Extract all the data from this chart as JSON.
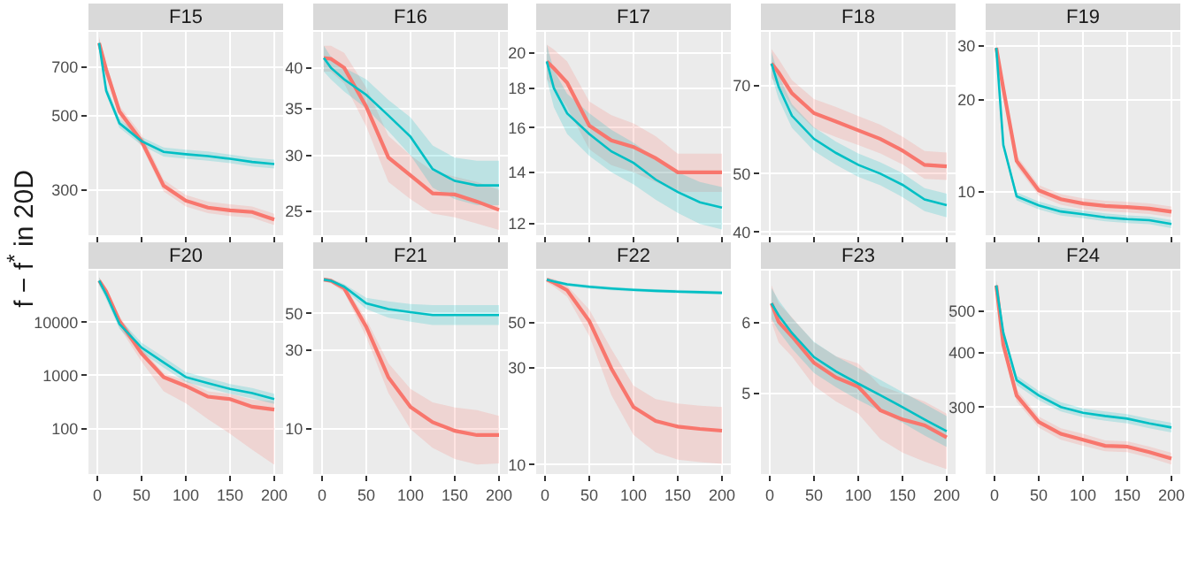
{
  "chart_data": [
    {
      "type": "line",
      "title": "F15",
      "ylabel": "f − f$^{*}$ in 20D",
      "x": [
        2,
        10,
        25,
        50,
        75,
        100,
        125,
        150,
        175,
        200
      ],
      "xlim": [
        -10,
        210
      ],
      "xticks": [
        0,
        50,
        100,
        150,
        200
      ],
      "ylim": [
        220,
        890
      ],
      "yticks": [
        300,
        500,
        700
      ],
      "log": "y",
      "grid": true,
      "tick_labels": "y",
      "series": [
        {
          "color": "#f8766d",
          "values": [
            824,
            686,
            515,
            420,
            309,
            279,
            266,
            261,
            258,
            245
          ],
          "lower": [
            790,
            660,
            495,
            405,
            297,
            268,
            256,
            251,
            248,
            236
          ],
          "upper": [
            860,
            715,
            535,
            440,
            322,
            290,
            277,
            272,
            268,
            255
          ]
        },
        {
          "color": "#00bfc4",
          "values": [
            824,
            594,
            475,
            420,
            390,
            384,
            379,
            372,
            364,
            359
          ],
          "lower": [
            800,
            580,
            460,
            408,
            378,
            372,
            367,
            361,
            353,
            348
          ],
          "upper": [
            850,
            615,
            490,
            432,
            402,
            396,
            391,
            383,
            375,
            370
          ]
        }
      ]
    },
    {
      "type": "line",
      "title": "F16",
      "x": [
        2,
        10,
        25,
        50,
        75,
        100,
        125,
        150,
        175,
        200
      ],
      "xlim": [
        -10,
        210
      ],
      "xticks": [
        0,
        50,
        100,
        150,
        200
      ],
      "ylim": [
        23.1,
        45
      ],
      "yticks": [
        25,
        30,
        35,
        40
      ],
      "log": "y",
      "grid": true,
      "tick_labels": "y",
      "series": [
        {
          "color": "#f8766d",
          "values": [
            41.3,
            41.2,
            40.0,
            35.2,
            29.8,
            28.1,
            26.5,
            26.4,
            25.8,
            25.1
          ],
          "lower": [
            39.5,
            39.5,
            38,
            33,
            27.5,
            26,
            24.8,
            24.5,
            24,
            23.5
          ],
          "upper": [
            43,
            43,
            42,
            37.5,
            32,
            30,
            28.5,
            28,
            27.5,
            26.8
          ]
        },
        {
          "color": "#00bfc4",
          "values": [
            41.3,
            40.0,
            38.5,
            36.6,
            34.2,
            31.9,
            28.7,
            27.6,
            27.2,
            27.2
          ],
          "lower": [
            39.5,
            38.5,
            37,
            35,
            32.5,
            30,
            27,
            26,
            25.5,
            25.5
          ],
          "upper": [
            43,
            41.5,
            40,
            38.5,
            36,
            34,
            31,
            29.8,
            29.5,
            29.5
          ]
        }
      ]
    },
    {
      "type": "line",
      "title": "F17",
      "x": [
        2,
        10,
        25,
        50,
        75,
        100,
        125,
        150,
        175,
        200
      ],
      "xlim": [
        -10,
        210
      ],
      "xticks": [
        0,
        50,
        100,
        150,
        200
      ],
      "ylim": [
        11.6,
        21.3
      ],
      "yticks": [
        12,
        14,
        16,
        18,
        20
      ],
      "log": "y",
      "grid": true,
      "tick_labels": "y",
      "series": [
        {
          "color": "#f8766d",
          "values": [
            19.5,
            19.1,
            18.3,
            16.1,
            15.4,
            15.1,
            14.6,
            14.0,
            14.0,
            14.0
          ],
          "lower": [
            18.5,
            18.0,
            17.0,
            15.0,
            14.3,
            14.0,
            13.6,
            13.2,
            13.2,
            13.2
          ],
          "upper": [
            20.5,
            20.2,
            19.5,
            17.3,
            16.6,
            16.2,
            15.6,
            14.8,
            14.8,
            14.8
          ]
        },
        {
          "color": "#00bfc4",
          "values": [
            19.5,
            18.0,
            16.7,
            15.7,
            14.9,
            14.4,
            13.7,
            13.2,
            12.8,
            12.6
          ],
          "lower": [
            18.5,
            17.0,
            15.7,
            14.7,
            14.0,
            13.5,
            12.9,
            12.4,
            12.0,
            11.8
          ],
          "upper": [
            20.5,
            19.0,
            17.7,
            16.7,
            15.9,
            15.3,
            14.6,
            14.0,
            13.6,
            13.4
          ]
        }
      ]
    },
    {
      "type": "line",
      "title": "F18",
      "x": [
        2,
        10,
        25,
        50,
        75,
        100,
        125,
        150,
        175,
        200
      ],
      "xlim": [
        -10,
        210
      ],
      "xticks": [
        0,
        50,
        100,
        150,
        200
      ],
      "ylim": [
        39.5,
        86
      ],
      "yticks": [
        40,
        50,
        70
      ],
      "log": "y",
      "grid": true,
      "tick_labels": "y",
      "series": [
        {
          "color": "#f8766d",
          "values": [
            76.2,
            73.6,
            68.0,
            63.0,
            61.0,
            59.0,
            57.1,
            54.6,
            51.7,
            51.4
          ],
          "lower": [
            72,
            70,
            64.5,
            59.5,
            57.5,
            55.8,
            54,
            51.8,
            49,
            48.8
          ],
          "upper": [
            80.5,
            77.5,
            71.5,
            66.5,
            64.5,
            62.3,
            60.3,
            57.6,
            54.5,
            54.2
          ]
        },
        {
          "color": "#00bfc4",
          "values": [
            76.2,
            69.7,
            62.4,
            57.1,
            54.1,
            51.7,
            50.0,
            47.9,
            45.3,
            44.3
          ],
          "lower": [
            72.8,
            66.5,
            59.6,
            54.5,
            51.7,
            49.4,
            47.8,
            45.7,
            43.3,
            42.3
          ],
          "upper": [
            79.6,
            72.9,
            65.2,
            59.7,
            56.5,
            54,
            52.2,
            50.1,
            47.3,
            46.3
          ]
        }
      ]
    },
    {
      "type": "line",
      "title": "F19",
      "x": [
        2,
        10,
        25,
        50,
        75,
        100,
        125,
        150,
        175,
        200
      ],
      "xlim": [
        -10,
        210
      ],
      "xticks": [
        0,
        50,
        100,
        150,
        200
      ],
      "ylim": [
        7.2,
        33.3
      ],
      "yticks": [
        10,
        20,
        30
      ],
      "log": "y",
      "grid": true,
      "tick_labels": "y",
      "series": [
        {
          "color": "#f8766d",
          "values": [
            29.5,
            21.7,
            12.6,
            10.1,
            9.44,
            9.14,
            8.98,
            8.9,
            8.8,
            8.6
          ],
          "lower": [
            28.3,
            20.8,
            12.1,
            9.7,
            9.06,
            8.77,
            8.62,
            8.54,
            8.45,
            8.26
          ],
          "upper": [
            30.7,
            22.6,
            13.1,
            10.5,
            9.82,
            9.51,
            9.34,
            9.26,
            9.15,
            8.94
          ]
        },
        {
          "color": "#00bfc4",
          "values": [
            29.5,
            14.2,
            9.65,
            9.02,
            8.61,
            8.43,
            8.24,
            8.13,
            8.06,
            7.84
          ],
          "lower": [
            28.6,
            13.8,
            9.36,
            8.75,
            8.35,
            8.18,
            7.99,
            7.89,
            7.82,
            7.6
          ],
          "upper": [
            30.4,
            14.6,
            9.94,
            9.29,
            8.87,
            8.68,
            8.49,
            8.37,
            8.3,
            8.08
          ]
        }
      ]
    },
    {
      "type": "line",
      "title": "F20",
      "x": [
        2,
        10,
        25,
        50,
        75,
        100,
        125,
        150,
        175,
        200
      ],
      "xlim": [
        -10,
        210
      ],
      "xticks": [
        0,
        50,
        100,
        150,
        200
      ],
      "ylim": [
        14,
        93000
      ],
      "yticks": [
        100,
        1000,
        10000
      ],
      "log": "y",
      "grid": true,
      "series": [
        {
          "color": "#f8766d",
          "values": [
            60000,
            37800,
            10500,
            2580,
            927,
            631,
            398,
            359,
            258,
            227
          ],
          "lower": [
            50000,
            30000,
            8000,
            1800,
            500,
            300,
            150,
            80,
            40,
            21
          ],
          "upper": [
            70000,
            45000,
            13000,
            3200,
            1100,
            800,
            500,
            450,
            350,
            330
          ]
        },
        {
          "color": "#00bfc4",
          "values": [
            60000,
            33300,
            9260,
            3330,
            1750,
            927,
            717,
            555,
            464,
            359
          ],
          "lower": [
            50000,
            27000,
            7500,
            2700,
            1400,
            750,
            580,
            450,
            370,
            290
          ],
          "upper": [
            70000,
            40000,
            11500,
            4100,
            2200,
            1150,
            890,
            690,
            580,
            450
          ]
        }
      ]
    },
    {
      "type": "line",
      "title": "F21",
      "x": [
        2,
        10,
        25,
        50,
        75,
        100,
        125,
        150,
        175,
        200
      ],
      "xlim": [
        -10,
        210
      ],
      "xticks": [
        0,
        50,
        100,
        150,
        200
      ],
      "ylim": [
        5.35,
        90.6
      ],
      "yticks": [
        10,
        30,
        50
      ],
      "log": "y",
      "grid": true,
      "series": [
        {
          "color": "#f8766d",
          "values": [
            80,
            78.7,
            70.8,
            41.4,
            20.5,
            13.6,
            11.0,
            9.76,
            9.2,
            9.2
          ],
          "lower": [
            78,
            76,
            67,
            36,
            16.5,
            10,
            7.7,
            6.6,
            6.1,
            6.2
          ],
          "upper": [
            82,
            81,
            74,
            46,
            25,
            17.5,
            14.5,
            13.5,
            13,
            12
          ]
        },
        {
          "color": "#00bfc4",
          "values": [
            80,
            78.7,
            72.4,
            57.5,
            53,
            50.8,
            48.8,
            48.8,
            48.8,
            48.8
          ],
          "lower": [
            78,
            76.5,
            70,
            53,
            47,
            44.5,
            42.5,
            42.5,
            42.5,
            42.5
          ],
          "upper": [
            82,
            81,
            75,
            62,
            59,
            57,
            56,
            56,
            56,
            56
          ]
        }
      ]
    },
    {
      "type": "line",
      "title": "F22",
      "x": [
        2,
        10,
        25,
        50,
        75,
        100,
        125,
        150,
        175,
        200
      ],
      "xlim": [
        -10,
        210
      ],
      "xticks": [
        0,
        50,
        100,
        150,
        200
      ],
      "ylim": [
        9,
        90
      ],
      "yticks": [
        10,
        30,
        50
      ],
      "log": "y",
      "grid": true,
      "series": [
        {
          "color": "#f8766d",
          "values": [
            81.3,
            78.5,
            72,
            50.8,
            29.7,
            19.2,
            16.4,
            15.4,
            15.0,
            14.7
          ],
          "lower": [
            79,
            75,
            67,
            43,
            22,
            14,
            11.5,
            10.6,
            10.3,
            10.1
          ],
          "upper": [
            83,
            82,
            76,
            58,
            37,
            24.5,
            21,
            20,
            19.5,
            19.2
          ]
        },
        {
          "color": "#00bfc4",
          "values": [
            81.3,
            79.6,
            77,
            75,
            73.5,
            72.4,
            71.6,
            71,
            70.5,
            70
          ],
          "lower": [
            79.7,
            78,
            75.5,
            73.5,
            72,
            71,
            70.2,
            69.6,
            69.1,
            68.6
          ],
          "upper": [
            82.9,
            81.2,
            78.5,
            76.5,
            75,
            73.8,
            73,
            72.4,
            71.9,
            71.4
          ]
        }
      ]
    },
    {
      "type": "line",
      "title": "F23",
      "x": [
        2,
        10,
        25,
        50,
        75,
        100,
        125,
        150,
        175,
        200
      ],
      "xlim": [
        -10,
        210
      ],
      "xticks": [
        0,
        50,
        100,
        150,
        200
      ],
      "ylim": [
        4.07,
        6.85
      ],
      "yticks": [
        5,
        6
      ],
      "log": "y",
      "grid": true,
      "series": [
        {
          "color": "#f8766d",
          "values": [
            6.3,
            6.01,
            5.79,
            5.41,
            5.21,
            5.09,
            4.79,
            4.68,
            4.61,
            4.47
          ],
          "lower": [
            6.0,
            5.7,
            5.5,
            5.1,
            4.9,
            4.75,
            4.45,
            4.3,
            4.2,
            4.12
          ],
          "upper": [
            6.6,
            6.3,
            6.08,
            5.7,
            5.5,
            5.4,
            5.1,
            5.0,
            4.9,
            4.75
          ]
        },
        {
          "color": "#00bfc4",
          "values": [
            6.3,
            6.11,
            5.84,
            5.49,
            5.29,
            5.13,
            4.98,
            4.83,
            4.68,
            4.54
          ],
          "lower": [
            6.05,
            5.87,
            5.61,
            5.27,
            5.08,
            4.92,
            4.78,
            4.64,
            4.49,
            4.36
          ],
          "upper": [
            6.55,
            6.35,
            6.07,
            5.71,
            5.5,
            5.34,
            5.18,
            5.02,
            4.87,
            4.72
          ]
        }
      ]
    },
    {
      "type": "line",
      "title": "F24",
      "x": [
        2,
        10,
        25,
        50,
        75,
        100,
        125,
        150,
        175,
        200
      ],
      "xlim": [
        -10,
        210
      ],
      "xticks": [
        0,
        50,
        100,
        150,
        200
      ],
      "ylim": [
        210,
        620
      ],
      "yticks": [
        300,
        400,
        500
      ],
      "log": "y",
      "grid": true,
      "series": [
        {
          "color": "#f8766d",
          "values": [
            573,
            418,
            319,
            277,
            260,
            252,
            244,
            243,
            236,
            228
          ],
          "lower": [
            556,
            405,
            309,
            269,
            252,
            244,
            237,
            236,
            229,
            221
          ],
          "upper": [
            590,
            431,
            329,
            285,
            268,
            260,
            251,
            250,
            243,
            235
          ]
        },
        {
          "color": "#00bfc4",
          "values": [
            573,
            445,
            346,
            319,
            300,
            291,
            286,
            282,
            275,
            269
          ],
          "lower": [
            559,
            434,
            337,
            311,
            293,
            284,
            279,
            275,
            268,
            262
          ],
          "upper": [
            587,
            456,
            355,
            327,
            308,
            298,
            293,
            289,
            282,
            276
          ]
        }
      ]
    }
  ]
}
